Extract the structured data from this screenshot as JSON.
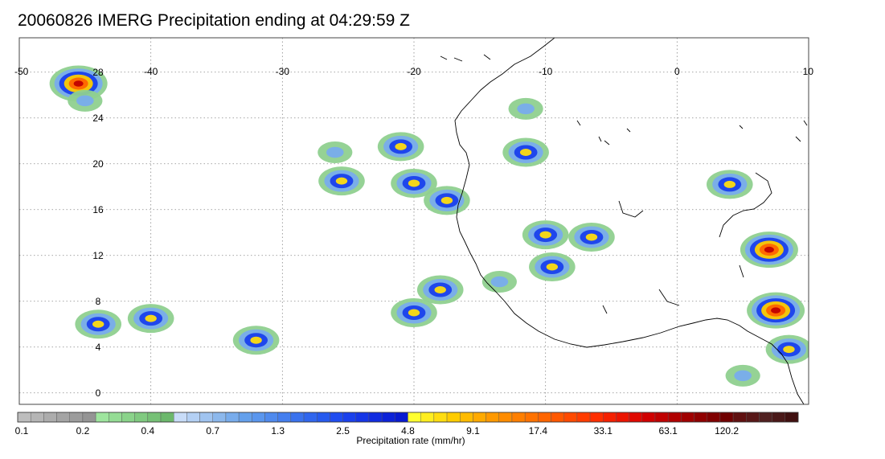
{
  "title": "20060826 IMERG Precipitation ending at 04:29:59 Z",
  "map": {
    "lon_range": [
      -50,
      10
    ],
    "lat_range": [
      -1,
      31
    ],
    "lon_ticks": [
      "-50",
      "-40",
      "-30",
      "-20",
      "-10",
      "0",
      "10"
    ],
    "lat_ticks": [
      "0",
      "4",
      "8",
      "12",
      "16",
      "20",
      "24",
      "28"
    ],
    "gridlines": "dotted"
  },
  "colorbar": {
    "title": "Precipitation rate (mm/hr)",
    "labels": [
      "0.1",
      "0.2",
      "0.4",
      "0.7",
      "1.3",
      "2.5",
      "4.8",
      "9.1",
      "17.4",
      "33.1",
      "63.1",
      "120.2"
    ],
    "colors": [
      "#bdbdbd",
      "#b5b5b5",
      "#acacac",
      "#a4a4a4",
      "#9c9c9c",
      "#949494",
      "#9ee59e",
      "#94dc94",
      "#8ad38a",
      "#80ca80",
      "#76c176",
      "#6cb86c",
      "#c8dcf8",
      "#b4d0f4",
      "#a0c4f0",
      "#8cb8ec",
      "#78acec",
      "#64a0ec",
      "#5a96ee",
      "#4f8aee",
      "#447eee",
      "#3a72ee",
      "#3066ee",
      "#265aee",
      "#1f4cf0",
      "#1a40ec",
      "#1535e6",
      "#102be0",
      "#0c22d8",
      "#081ad0",
      "#ffff30",
      "#ffee20",
      "#ffdd10",
      "#ffcc00",
      "#ffbb00",
      "#ffaa00",
      "#ff9900",
      "#ff8c00",
      "#ff7f00",
      "#ff7200",
      "#ff6500",
      "#ff5800",
      "#ff4a00",
      "#ff3c00",
      "#ff2e00",
      "#f52000",
      "#eb1400",
      "#e00800",
      "#d00000",
      "#c00000",
      "#b00000",
      "#a00000",
      "#900000",
      "#800000",
      "#700000",
      "#601010",
      "#581818",
      "#502020",
      "#4a1818",
      "#401010"
    ]
  },
  "precip_cells": [
    {
      "lon": -45.5,
      "lat": 27.0,
      "intensity": "heavy"
    },
    {
      "lon": -45.0,
      "lat": 25.5,
      "intensity": "light"
    },
    {
      "lon": -26.0,
      "lat": 21.0,
      "intensity": "light"
    },
    {
      "lon": -25.5,
      "lat": 18.5,
      "intensity": "moderate"
    },
    {
      "lon": -21.0,
      "lat": 21.5,
      "intensity": "moderate"
    },
    {
      "lon": -20.0,
      "lat": 18.3,
      "intensity": "moderate"
    },
    {
      "lon": -17.5,
      "lat": 16.8,
      "intensity": "moderate"
    },
    {
      "lon": -18.0,
      "lat": 9.0,
      "intensity": "moderate"
    },
    {
      "lon": -20.0,
      "lat": 7.0,
      "intensity": "moderate"
    },
    {
      "lon": -32.0,
      "lat": 4.6,
      "intensity": "moderate"
    },
    {
      "lon": -44.0,
      "lat": 6.0,
      "intensity": "moderate"
    },
    {
      "lon": -40.0,
      "lat": 6.5,
      "intensity": "moderate"
    },
    {
      "lon": -13.5,
      "lat": 9.7,
      "intensity": "light"
    },
    {
      "lon": -10.0,
      "lat": 13.8,
      "intensity": "moderate"
    },
    {
      "lon": -6.5,
      "lat": 13.6,
      "intensity": "moderate"
    },
    {
      "lon": -9.5,
      "lat": 11.0,
      "intensity": "moderate"
    },
    {
      "lon": -11.5,
      "lat": 24.8,
      "intensity": "light"
    },
    {
      "lon": -11.5,
      "lat": 21.0,
      "intensity": "moderate"
    },
    {
      "lon": 4.0,
      "lat": 18.2,
      "intensity": "moderate"
    },
    {
      "lon": 7.0,
      "lat": 12.5,
      "intensity": "heavy"
    },
    {
      "lon": 7.5,
      "lat": 7.2,
      "intensity": "heavy"
    },
    {
      "lon": 8.5,
      "lat": 3.8,
      "intensity": "moderate"
    },
    {
      "lon": 5.0,
      "lat": 1.5,
      "intensity": "light"
    }
  ]
}
